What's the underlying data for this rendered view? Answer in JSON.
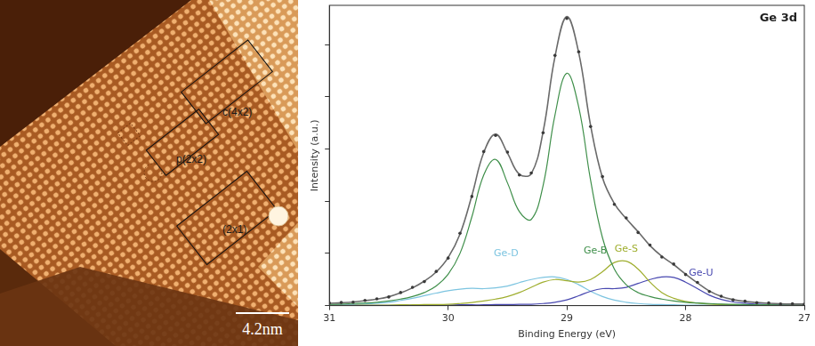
{
  "image": {
    "labels": [
      "c(4x2)",
      "p(2x2)",
      "(2x1)"
    ],
    "scale_bar": "4.2nm"
  },
  "chart_data": {
    "type": "line",
    "title": "Ge 3d",
    "x_label": "Binding Energy (eV)",
    "y_label": "Intensity (a.u.)",
    "x": [
      31.0,
      30.9,
      30.8,
      30.7,
      30.6,
      30.5,
      30.4,
      30.3,
      30.2,
      30.1,
      30.0,
      29.9,
      29.8,
      29.7,
      29.6,
      29.5,
      29.4,
      29.3,
      29.2,
      29.1,
      29.0,
      28.9,
      28.8,
      28.7,
      28.6,
      28.5,
      28.4,
      28.3,
      28.2,
      28.1,
      28.0,
      27.9,
      27.8,
      27.7,
      27.6,
      27.5,
      27.4,
      27.3,
      27.2,
      27.1,
      27.0
    ],
    "series": [
      {
        "type": "scatter",
        "marker": "circle",
        "color": "#3a3a3a",
        "values": [
          0.01,
          0.012,
          0.013,
          0.02,
          0.026,
          0.033,
          0.05,
          0.07,
          0.092,
          0.131,
          0.182,
          0.277,
          0.418,
          0.59,
          0.652,
          0.588,
          0.5,
          0.508,
          0.662,
          0.958,
          1.1,
          0.972,
          0.686,
          0.494,
          0.388,
          0.336,
          0.28,
          0.232,
          0.186,
          0.159,
          0.119,
          0.089,
          0.054,
          0.036,
          0.022,
          0.017,
          0.011,
          0.01,
          0.006,
          0.007,
          0.005
        ]
      },
      {
        "type": "line",
        "color": "#6a6a6a",
        "values": [
          0.009,
          0.011,
          0.014,
          0.019,
          0.025,
          0.034,
          0.049,
          0.068,
          0.094,
          0.129,
          0.184,
          0.274,
          0.421,
          0.586,
          0.657,
          0.584,
          0.503,
          0.505,
          0.666,
          0.953,
          1.107,
          0.968,
          0.69,
          0.49,
          0.391,
          0.333,
          0.283,
          0.23,
          0.189,
          0.157,
          0.121,
          0.087,
          0.056,
          0.035,
          0.023,
          0.016,
          0.012,
          0.009,
          0.007,
          0.006,
          0.006
        ]
      },
      {
        "name": "Ge-B",
        "type": "line",
        "color": "#3f8f4a",
        "values": [
          0.005,
          0.006,
          0.008,
          0.01,
          0.013,
          0.018,
          0.025,
          0.035,
          0.05,
          0.075,
          0.12,
          0.2,
          0.34,
          0.5,
          0.56,
          0.47,
          0.36,
          0.33,
          0.46,
          0.73,
          0.89,
          0.76,
          0.48,
          0.26,
          0.14,
          0.08,
          0.05,
          0.035,
          0.025,
          0.018,
          0.013,
          0.01,
          0.008,
          0.006,
          0.005,
          0.004,
          0.003,
          0.003,
          0.002,
          0.002,
          0.002
        ]
      },
      {
        "name": "Ge-S",
        "type": "line",
        "color": "#9fae2e",
        "values": [
          0.001,
          0.001,
          0.001,
          0.002,
          0.002,
          0.002,
          0.003,
          0.003,
          0.004,
          0.004,
          0.005,
          0.008,
          0.012,
          0.018,
          0.025,
          0.035,
          0.05,
          0.07,
          0.09,
          0.1,
          0.095,
          0.09,
          0.1,
          0.13,
          0.165,
          0.17,
          0.14,
          0.09,
          0.05,
          0.028,
          0.016,
          0.01,
          0.006,
          0.004,
          0.003,
          0.002,
          0.002,
          0.001,
          0.001,
          0.001,
          0.001
        ]
      },
      {
        "name": "Ge-U",
        "type": "line",
        "color": "#4848b0",
        "values": [
          0.001,
          0.001,
          0.001,
          0.001,
          0.001,
          0.001,
          0.001,
          0.002,
          0.002,
          0.002,
          0.002,
          0.003,
          0.003,
          0.003,
          0.004,
          0.004,
          0.005,
          0.005,
          0.008,
          0.013,
          0.022,
          0.038,
          0.055,
          0.065,
          0.065,
          0.07,
          0.085,
          0.1,
          0.11,
          0.108,
          0.09,
          0.065,
          0.04,
          0.024,
          0.014,
          0.009,
          0.006,
          0.004,
          0.003,
          0.002,
          0.002
        ]
      },
      {
        "name": "Ge-D",
        "type": "line",
        "color": "#7cc4e0",
        "values": [
          0.002,
          0.003,
          0.004,
          0.006,
          0.009,
          0.013,
          0.02,
          0.028,
          0.038,
          0.048,
          0.057,
          0.063,
          0.066,
          0.065,
          0.068,
          0.075,
          0.088,
          0.1,
          0.108,
          0.11,
          0.1,
          0.08,
          0.055,
          0.035,
          0.021,
          0.013,
          0.008,
          0.005,
          0.004,
          0.003,
          0.002,
          0.002,
          0.002,
          0.001,
          0.001,
          0.001,
          0.001,
          0.001,
          0.001,
          0.001,
          0.001
        ]
      }
    ],
    "xlim": [
      31,
      27
    ],
    "xticks": [
      31,
      30,
      29,
      28,
      27
    ],
    "ylim": [
      0,
      1.15
    ],
    "yticks": [
      0,
      0.2,
      0.4,
      0.6,
      0.8,
      1.0
    ],
    "tick_labels": "x",
    "grid": false
  }
}
